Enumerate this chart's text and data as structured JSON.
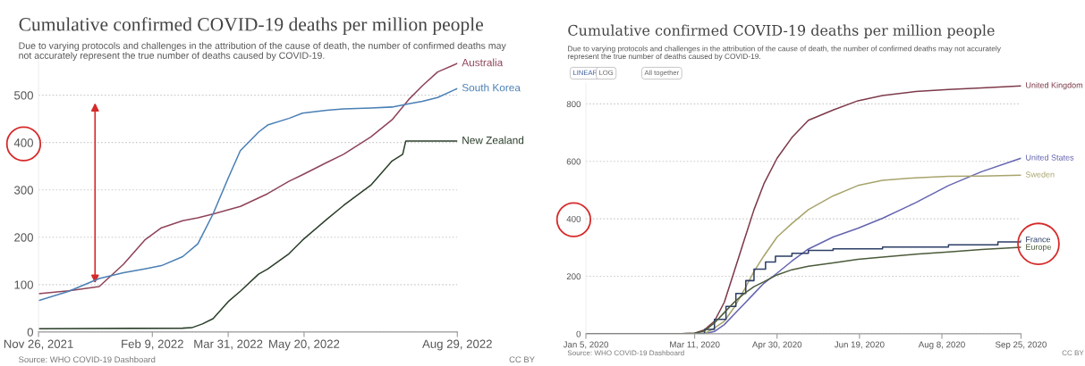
{
  "chart_data": [
    {
      "type": "line",
      "title": "Cumulative confirmed COVID-19 deaths per million people",
      "subtitle": "Due to varying protocols and challenges in the attribution of the cause of death, the number of confirmed deaths may not accurately represent the true number of deaths caused by COVID-19.",
      "x": [
        "2021-11-26",
        "2021-12-16",
        "2022-01-05",
        "2022-01-21",
        "2022-02-04",
        "2022-02-15",
        "2022-03-01",
        "2022-03-11",
        "2022-03-21",
        "2022-03-31",
        "2022-04-08",
        "2022-04-20",
        "2022-04-26",
        "2022-05-10",
        "2022-05-19",
        "2022-06-04",
        "2022-06-15",
        "2022-07-03",
        "2022-07-17",
        "2022-07-28",
        "2022-08-06",
        "2022-08-16",
        "2022-08-29"
      ],
      "series": [
        {
          "name": "Australia",
          "color": "#8f4459",
          "values": [
            81,
            87,
            96,
            143,
            194,
            220,
            235,
            241,
            249,
            258,
            265,
            283,
            292,
            318,
            332,
            358,
            375,
            412,
            448,
            491,
            520,
            549,
            567
          ]
        },
        {
          "name": "South Korea",
          "color": "#4a7fb5",
          "values": [
            66,
            86,
            113,
            125,
            133,
            140,
            159,
            186,
            249,
            325,
            383,
            422,
            437,
            451,
            462,
            468,
            471,
            473,
            475,
            482,
            487,
            495,
            514
          ]
        },
        {
          "name": "New Zealand",
          "color": "#2b3f2b",
          "x": [
            "2021-11-26",
            "2022-03-01",
            "2022-03-07",
            "2022-03-14",
            "2022-03-21",
            "2022-03-31",
            "2022-04-08",
            "2022-04-20",
            "2022-04-26",
            "2022-05-10",
            "2022-05-19",
            "2022-06-04",
            "2022-06-15",
            "2022-07-03",
            "2022-07-17",
            "2022-07-24",
            "2022-07-26",
            "2022-08-29"
          ],
          "values": [
            7,
            8,
            9,
            17,
            28,
            64,
            86,
            122,
            133,
            165,
            194,
            238,
            267,
            310,
            361,
            375,
            403,
            403
          ]
        }
      ],
      "xlim": [
        "2021-11-26",
        "2022-08-29"
      ],
      "xticks": [
        {
          "value": "2021-11-26",
          "label": "Nov 26, 2021"
        },
        {
          "value": "2022-02-09",
          "label": "Feb 9, 2022"
        },
        {
          "value": "2022-03-31",
          "label": "Mar 31, 2022"
        },
        {
          "value": "2022-05-20",
          "label": "May 20, 2022"
        },
        {
          "value": "2022-08-29",
          "label": "Aug 29, 2022"
        }
      ],
      "ylim": [
        0,
        575
      ],
      "yticks": [
        0,
        100,
        200,
        300,
        400,
        500
      ],
      "grid": "y",
      "annotations": [
        "Source: WHO COVID-19 Dashboard",
        "CC BY"
      ]
    },
    {
      "type": "line",
      "title": "Cumulative confirmed COVID-19 deaths per million people",
      "subtitle": "Due to varying protocols and challenges in the attribution of the cause of death, the number of confirmed deaths may not accurately represent the true number of deaths caused by COVID-19.",
      "x": [
        "2020-01-05",
        "2020-02-29",
        "2020-03-11",
        "2020-03-17",
        "2020-03-23",
        "2020-03-29",
        "2020-04-04",
        "2020-04-10",
        "2020-04-16",
        "2020-04-22",
        "2020-04-30",
        "2020-05-09",
        "2020-05-19",
        "2020-06-03",
        "2020-06-18",
        "2020-07-03",
        "2020-07-23",
        "2020-08-12",
        "2020-09-01",
        "2020-09-25"
      ],
      "series": [
        {
          "name": "United Kingdom",
          "color": "#7d3a4a",
          "values": [
            0,
            0,
            2,
            14,
            44,
            110,
            217,
            325,
            432,
            522,
            611,
            683,
            743,
            779,
            811,
            829,
            843,
            850,
            856,
            863
          ]
        },
        {
          "name": "United States",
          "color": "#6464b0",
          "values": [
            0,
            0,
            0,
            0,
            8,
            32,
            68,
            104,
            140,
            176,
            211,
            253,
            295,
            337,
            367,
            402,
            456,
            516,
            564,
            611
          ]
        },
        {
          "name": "Sweden",
          "color": "#a8a46c",
          "values": [
            0,
            0,
            0,
            1,
            20,
            44,
            92,
            152,
            217,
            271,
            337,
            384,
            432,
            480,
            516,
            534,
            543,
            548,
            549,
            552
          ]
        },
        {
          "name": "France",
          "color": "#2c3e66",
          "type": "step",
          "x": [
            "2020-01-05",
            "2020-03-11",
            "2020-03-17",
            "2020-03-22",
            "2020-03-23",
            "2020-03-29",
            "2020-03-30",
            "2020-04-04",
            "2020-04-05",
            "2020-04-10",
            "2020-04-11",
            "2020-04-15",
            "2020-04-16",
            "2020-04-22",
            "2020-04-23",
            "2020-04-28",
            "2020-04-29",
            "2020-05-09",
            "2020-05-19",
            "2020-06-03",
            "2020-07-03",
            "2020-08-12",
            "2020-09-11",
            "2020-09-25"
          ],
          "values": [
            0,
            1,
            15,
            15,
            50,
            50,
            95,
            95,
            140,
            140,
            185,
            185,
            225,
            225,
            250,
            250,
            270,
            280,
            290,
            296,
            302,
            310,
            320,
            325
          ]
        },
        {
          "name": "Europe",
          "color": "#4b5a3a",
          "values": [
            0,
            0,
            2,
            10,
            38,
            74,
            110,
            140,
            164,
            181,
            205,
            223,
            235,
            247,
            259,
            267,
            277,
            285,
            293,
            301
          ]
        }
      ],
      "xlim": [
        "2020-01-05",
        "2020-09-25"
      ],
      "xticks": [
        {
          "value": "2020-01-05",
          "label": "Jan 5, 2020"
        },
        {
          "value": "2020-03-11",
          "label": "Mar 11, 2020"
        },
        {
          "value": "2020-04-30",
          "label": "Apr 30, 2020"
        },
        {
          "value": "2020-06-19",
          "label": "Jun 19, 2020"
        },
        {
          "value": "2020-08-08",
          "label": "Aug 8, 2020"
        },
        {
          "value": "2020-09-25",
          "label": "Sep 25, 2020"
        }
      ],
      "ylim": [
        0,
        870
      ],
      "yticks": [
        0,
        200,
        400,
        600,
        800
      ],
      "grid": "y",
      "annotations": [
        "Source: WHO COVID-19 Dashboard",
        "LINEAR",
        "LOG",
        "All together",
        "CC BY"
      ]
    }
  ]
}
